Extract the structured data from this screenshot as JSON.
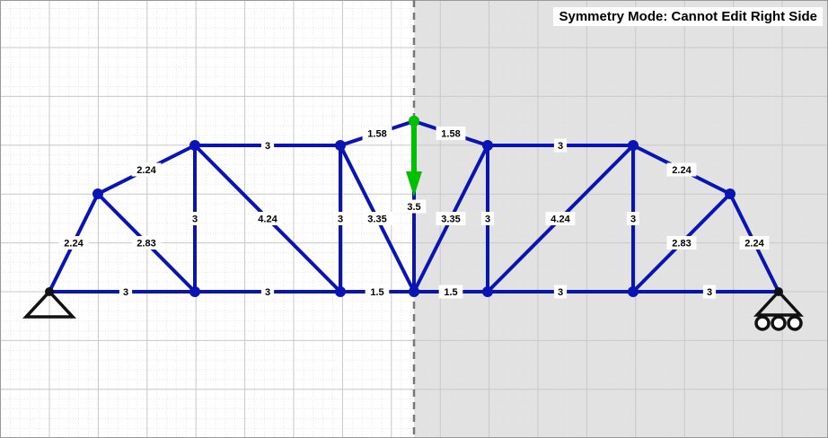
{
  "status": {
    "symmetry_mode_label": "Symmetry Mode: Cannot Edit Right Side"
  },
  "colors": {
    "member": "#0a14b4",
    "load_arrow": "#00c000",
    "locked_region": "#e2e2e2",
    "grid_major": "#c8c8c8",
    "grid_minor": "#e6e6e6",
    "symmetry_line": "#777777",
    "support": "#111111"
  },
  "icons": [
    "pin-support-icon",
    "roller-support-icon",
    "load-arrow-icon"
  ],
  "members": [
    {
      "id": "L0-L1",
      "from": "L0",
      "to": "L1",
      "length": "3"
    },
    {
      "id": "L1-L2",
      "from": "L1",
      "to": "L2",
      "length": "3"
    },
    {
      "id": "L2-L3",
      "from": "L2",
      "to": "L3",
      "length": "1.5"
    },
    {
      "id": "L3-L4",
      "from": "L3",
      "to": "L4",
      "length": "1.5"
    },
    {
      "id": "L4-L5",
      "from": "L4",
      "to": "L5",
      "length": "3"
    },
    {
      "id": "L5-L6",
      "from": "L5",
      "to": "L6",
      "length": "3"
    },
    {
      "id": "L0-A",
      "from": "L0",
      "to": "A",
      "length": "2.24"
    },
    {
      "id": "A-U1",
      "from": "A",
      "to": "U1",
      "length": "2.24"
    },
    {
      "id": "U1-U2",
      "from": "U1",
      "to": "U2",
      "length": "3"
    },
    {
      "id": "U2-T",
      "from": "U2",
      "to": "T",
      "length": "1.58"
    },
    {
      "id": "T-U3",
      "from": "T",
      "to": "U3",
      "length": "1.58"
    },
    {
      "id": "U3-U4",
      "from": "U3",
      "to": "U4",
      "length": "3"
    },
    {
      "id": "U4-B",
      "from": "U4",
      "to": "B",
      "length": "2.24"
    },
    {
      "id": "B-L6",
      "from": "B",
      "to": "L6",
      "length": "2.24"
    },
    {
      "id": "A-L1",
      "from": "A",
      "to": "L1",
      "length": "2.83"
    },
    {
      "id": "U1-L1",
      "from": "U1",
      "to": "L1",
      "length": "3"
    },
    {
      "id": "U1-L2",
      "from": "U1",
      "to": "L2",
      "length": "4.24"
    },
    {
      "id": "U2-L2",
      "from": "U2",
      "to": "L2",
      "length": "3"
    },
    {
      "id": "U2-L3",
      "from": "U2",
      "to": "L3",
      "length": "3.35"
    },
    {
      "id": "T-L3",
      "from": "T",
      "to": "L3",
      "length": "3.5"
    },
    {
      "id": "U3-L3",
      "from": "U3",
      "to": "L3",
      "length": "3.35"
    },
    {
      "id": "U3-L4",
      "from": "U3",
      "to": "L4",
      "length": "3"
    },
    {
      "id": "U4-L4",
      "from": "U4",
      "to": "L4",
      "length": "4.24"
    },
    {
      "id": "U4-L5",
      "from": "U4",
      "to": "L5",
      "length": "3"
    },
    {
      "id": "B-L5",
      "from": "B",
      "to": "L5",
      "length": "2.83"
    }
  ]
}
